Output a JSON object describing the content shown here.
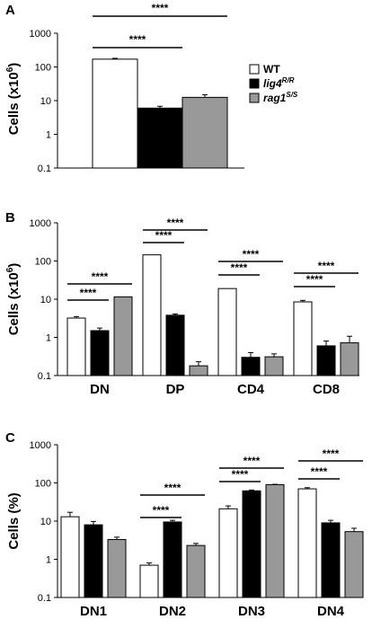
{
  "colors": {
    "WT": "#ffffff",
    "lig4": "#000000",
    "rag1": "#999999",
    "axis": "#000000"
  },
  "significance_label": "****",
  "panels": [
    {
      "letter": "A",
      "ylabel": "Cells (x10",
      "ylabel_sup": "6",
      "ylabel_close": ")",
      "yticks": [
        "1000",
        "100",
        "10",
        "1",
        "0.1"
      ],
      "legend": [
        {
          "key": "WT",
          "label": "WT",
          "sup": ""
        },
        {
          "key": "lig4",
          "label": "lig4",
          "sup": "R/R"
        },
        {
          "key": "rag1",
          "label": "rag1",
          "sup": "S/S"
        }
      ]
    },
    {
      "letter": "B",
      "ylabel": "Cells (x10",
      "ylabel_sup": "6",
      "ylabel_close": ")",
      "yticks": [
        "1000",
        "100",
        "10",
        "1",
        "0.1"
      ]
    },
    {
      "letter": "C",
      "ylabel": "Cells (%)",
      "ylabel_sup": "",
      "ylabel_close": "",
      "yticks": [
        "1000",
        "100",
        "10",
        "1",
        "0.1"
      ]
    }
  ],
  "chart_data": [
    {
      "type": "bar",
      "title": "A",
      "ylabel": "Cells (x10^6)",
      "yscale": "log",
      "ylim": [
        0.1,
        1000
      ],
      "categories": [
        ""
      ],
      "series": [
        {
          "name": "WT",
          "values": [
            170
          ],
          "errors": [
            10
          ]
        },
        {
          "name": "lig4 R/R",
          "values": [
            6
          ],
          "errors": [
            0.8
          ]
        },
        {
          "name": "rag1 S/S",
          "values": [
            12.5
          ],
          "errors": [
            2.5
          ]
        }
      ],
      "significance": [
        {
          "from": "WT",
          "to": "lig4 R/R",
          "label": "****"
        },
        {
          "from": "WT",
          "to": "rag1 S/S",
          "label": "****"
        }
      ],
      "legend_position": "right"
    },
    {
      "type": "bar",
      "title": "B",
      "ylabel": "Cells (x10^6)",
      "yscale": "log",
      "ylim": [
        0.1,
        1000
      ],
      "categories": [
        "DN",
        "DP",
        "CD4",
        "CD8"
      ],
      "series": [
        {
          "name": "WT",
          "values": [
            3.2,
            145,
            19,
            8.5
          ],
          "errors": [
            0.3,
            0,
            0,
            0.8
          ]
        },
        {
          "name": "lig4 R/R",
          "values": [
            1.5,
            3.8,
            0.3,
            0.6
          ],
          "errors": [
            0.25,
            0.3,
            0.1,
            0.2
          ]
        },
        {
          "name": "rag1 S/S",
          "values": [
            11.5,
            0.18,
            0.31,
            0.72
          ],
          "errors": [
            0,
            0.05,
            0.06,
            0.35
          ]
        }
      ],
      "significance": [
        {
          "category": "DN",
          "from": "WT",
          "to": "lig4 R/R",
          "label": "****"
        },
        {
          "category": "DN",
          "from": "WT",
          "to": "rag1 S/S",
          "label": "****"
        },
        {
          "category": "DP",
          "from": "WT",
          "to": "lig4 R/R",
          "label": "****"
        },
        {
          "category": "DP",
          "from": "WT",
          "to": "rag1 S/S",
          "label": "****"
        },
        {
          "category": "CD4",
          "from": "WT",
          "to": "lig4 R/R",
          "label": "****"
        },
        {
          "category": "CD4",
          "from": "WT",
          "to": "rag1 S/S",
          "label": "****"
        },
        {
          "category": "CD8",
          "from": "WT",
          "to": "lig4 R/R",
          "label": "****"
        },
        {
          "category": "CD8",
          "from": "WT",
          "to": "rag1 S/S",
          "label": "****"
        }
      ]
    },
    {
      "type": "bar",
      "title": "C",
      "ylabel": "Cells (%)",
      "yscale": "log",
      "ylim": [
        0.1,
        1000
      ],
      "categories": [
        "DN1",
        "DN2",
        "DN3",
        "DN4"
      ],
      "series": [
        {
          "name": "WT",
          "values": [
            13,
            0.7,
            21,
            70
          ],
          "errors": [
            4,
            0.1,
            4,
            5
          ]
        },
        {
          "name": "lig4 R/R",
          "values": [
            8,
            9.5,
            62,
            9
          ],
          "errors": [
            1.8,
            1,
            3,
            1.5
          ]
        },
        {
          "name": "rag1 S/S",
          "values": [
            3.3,
            2.3,
            90,
            5.3
          ],
          "errors": [
            0.5,
            0.3,
            2,
            1.2
          ]
        }
      ],
      "significance": [
        {
          "category": "DN2",
          "from": "WT",
          "to": "lig4 R/R",
          "label": "****"
        },
        {
          "category": "DN2",
          "from": "WT",
          "to": "rag1 S/S",
          "label": "****"
        },
        {
          "category": "DN3",
          "from": "WT",
          "to": "lig4 R/R",
          "label": "****"
        },
        {
          "category": "DN3",
          "from": "WT",
          "to": "rag1 S/S",
          "label": "****"
        },
        {
          "category": "DN4",
          "from": "WT",
          "to": "lig4 R/R",
          "label": "****"
        },
        {
          "category": "DN4",
          "from": "WT",
          "to": "rag1 S/S",
          "label": "****"
        }
      ]
    }
  ]
}
